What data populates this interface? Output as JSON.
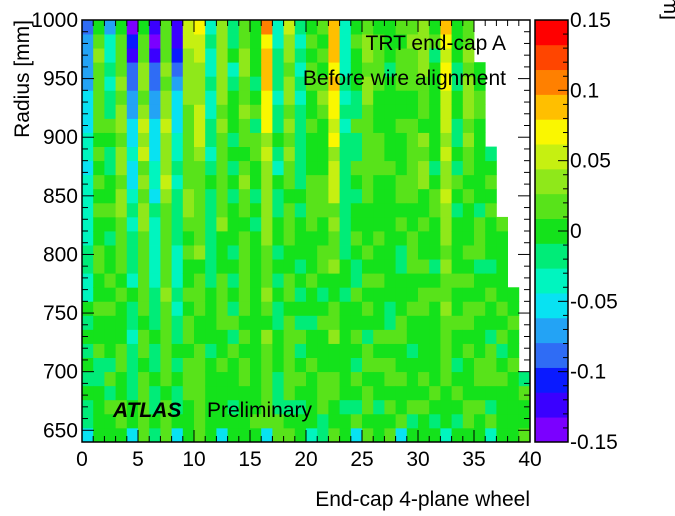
{
  "chart_data": {
    "type": "heatmap",
    "title": "",
    "annotations": [
      "TRT end-cap A",
      "Before wire alignment"
    ],
    "watermark": {
      "brand": "ATLAS",
      "label": "Preliminary"
    },
    "xlabel": "End-cap 4-plane wheel",
    "ylabel": "Radius [mm]",
    "zlabel": "μ [mm]",
    "xlim": [
      0,
      40
    ],
    "ylim": [
      640,
      1000
    ],
    "zlim": [
      -0.15,
      0.15
    ],
    "x_ticks": [
      0,
      5,
      10,
      15,
      20,
      25,
      30,
      35,
      40
    ],
    "y_ticks": [
      650,
      700,
      750,
      800,
      850,
      900,
      950,
      1000
    ],
    "z_ticks": [
      -0.15,
      -0.1,
      -0.05,
      0,
      0.05,
      0.1,
      0.15
    ],
    "x_tick_labels": [
      "0",
      "5",
      "10",
      "15",
      "20",
      "25",
      "30",
      "35",
      "40"
    ],
    "y_tick_labels": [
      "650",
      "700",
      "750",
      "800",
      "850",
      "900",
      "950",
      "1000"
    ],
    "z_tick_labels": [
      "-0.15",
      "-0.1",
      "-0.05",
      "0",
      "0.05",
      "0.1",
      "0.15"
    ],
    "grid": false,
    "x_bins": 40,
    "y_bins": 30,
    "y_bin_width_mm": 12,
    "colormap": [
      "#7b00ff",
      "#3a00ff",
      "#0a1aff",
      "#2f6cf5",
      "#23a3f5",
      "#08e2f2",
      "#00f5bf",
      "#00ec78",
      "#14e21b",
      "#58e31a",
      "#8fe81a",
      "#c6f011",
      "#faf700",
      "#ffbf00",
      "#ff8000",
      "#ff4500",
      "#ff0000"
    ],
    "column_means": [
      -0.08,
      0.02,
      0.0,
      0.06,
      -0.08,
      0.07,
      -0.08,
      0.075,
      -0.07,
      0.05,
      0.06,
      -0.04,
      0.045,
      -0.02,
      0.03,
      0.0,
      0.09,
      -0.03,
      0.04,
      -0.03,
      0.01,
      0.02,
      0.09,
      -0.04,
      0.0,
      0.03,
      0.015,
      0.0,
      0.01,
      0.02,
      0.03,
      0.0,
      0.085,
      -0.01,
      0.03,
      0.01,
      0.0,
      0.02,
      0.0,
      0.01
    ],
    "column_end_radius_mm": [
      1000,
      1000,
      1000,
      1000,
      1000,
      1000,
      1000,
      1000,
      1000,
      1000,
      1000,
      1000,
      1000,
      1000,
      1000,
      1000,
      1000,
      1000,
      1000,
      1000,
      1000,
      1000,
      1000,
      1000,
      1000,
      1000,
      1000,
      1000,
      1000,
      1000,
      1000,
      1000,
      1000,
      1000,
      1000,
      964,
      892,
      832,
      772,
      700
    ]
  }
}
